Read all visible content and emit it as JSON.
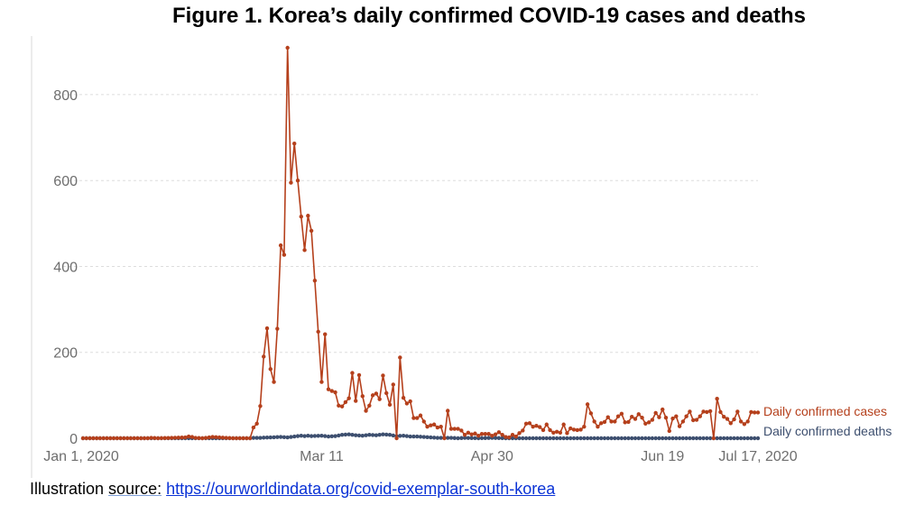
{
  "chart_data": {
    "type": "line",
    "title": "Figure 1. Korea’s daily confirmed COVID-19 cases and deaths",
    "xlabel": "",
    "ylabel": "",
    "ylim": [
      0,
      930
    ],
    "yticks": [
      0,
      200,
      400,
      600,
      800
    ],
    "xticks": [
      {
        "day": 0,
        "label": "Jan 1, 2020"
      },
      {
        "day": 70,
        "label": "Mar 11"
      },
      {
        "day": 120,
        "label": "Apr 30"
      },
      {
        "day": 170,
        "label": "Jun 19"
      },
      {
        "day": 198,
        "label": "Jul 17, 2020"
      }
    ],
    "x_unit": "days since Jan 1, 2020",
    "grid": true,
    "series": [
      {
        "name": "Daily confirmed cases",
        "color": "#b5401c",
        "points": [
          [
            0,
            0
          ],
          [
            19,
            0
          ],
          [
            20,
            1
          ],
          [
            22,
            0
          ],
          [
            26,
            1
          ],
          [
            30,
            2
          ],
          [
            31,
            4
          ],
          [
            32,
            3
          ],
          [
            33,
            1
          ],
          [
            35,
            0
          ],
          [
            38,
            3
          ],
          [
            40,
            2
          ],
          [
            44,
            0
          ],
          [
            49,
            0
          ],
          [
            50,
            25
          ],
          [
            51,
            34
          ],
          [
            52,
            75
          ],
          [
            53,
            190
          ],
          [
            54,
            256
          ],
          [
            55,
            161
          ],
          [
            56,
            131
          ],
          [
            57,
            255
          ],
          [
            58,
            449
          ],
          [
            59,
            427
          ],
          [
            60,
            909
          ],
          [
            61,
            595
          ],
          [
            62,
            686
          ],
          [
            63,
            600
          ],
          [
            64,
            516
          ],
          [
            65,
            438
          ],
          [
            66,
            518
          ],
          [
            67,
            483
          ],
          [
            68,
            367
          ],
          [
            69,
            248
          ],
          [
            70,
            131
          ],
          [
            71,
            242
          ],
          [
            72,
            114
          ],
          [
            73,
            110
          ],
          [
            74,
            107
          ],
          [
            75,
            76
          ],
          [
            76,
            74
          ],
          [
            77,
            84
          ],
          [
            78,
            93
          ],
          [
            79,
            152
          ],
          [
            80,
            87
          ],
          [
            81,
            147
          ],
          [
            82,
            98
          ],
          [
            83,
            64
          ],
          [
            84,
            76
          ],
          [
            85,
            100
          ],
          [
            86,
            104
          ],
          [
            87,
            91
          ],
          [
            88,
            146
          ],
          [
            89,
            105
          ],
          [
            90,
            78
          ],
          [
            91,
            125
          ],
          [
            92,
            0
          ],
          [
            93,
            188
          ],
          [
            94,
            94
          ],
          [
            95,
            81
          ],
          [
            96,
            86
          ],
          [
            97,
            47
          ],
          [
            98,
            47
          ],
          [
            99,
            53
          ],
          [
            100,
            39
          ],
          [
            101,
            27
          ],
          [
            102,
            30
          ],
          [
            103,
            32
          ],
          [
            104,
            25
          ],
          [
            105,
            27
          ],
          [
            106,
            0
          ],
          [
            107,
            64
          ],
          [
            108,
            22
          ],
          [
            109,
            22
          ],
          [
            110,
            22
          ],
          [
            111,
            18
          ],
          [
            112,
            8
          ],
          [
            113,
            13
          ],
          [
            114,
            9
          ],
          [
            115,
            11
          ],
          [
            116,
            6
          ],
          [
            117,
            10
          ],
          [
            118,
            10
          ],
          [
            119,
            10
          ],
          [
            120,
            6
          ],
          [
            121,
            9
          ],
          [
            122,
            14
          ],
          [
            123,
            8
          ],
          [
            124,
            3
          ],
          [
            125,
            2
          ],
          [
            126,
            8
          ],
          [
            127,
            4
          ],
          [
            128,
            12
          ],
          [
            129,
            18
          ],
          [
            130,
            34
          ],
          [
            131,
            35
          ],
          [
            132,
            27
          ],
          [
            133,
            29
          ],
          [
            134,
            26
          ],
          [
            135,
            19
          ],
          [
            136,
            32
          ],
          [
            137,
            19
          ],
          [
            138,
            13
          ],
          [
            139,
            15
          ],
          [
            140,
            13
          ],
          [
            141,
            32
          ],
          [
            142,
            12
          ],
          [
            143,
            23
          ],
          [
            144,
            20
          ],
          [
            145,
            19
          ],
          [
            146,
            20
          ],
          [
            147,
            27
          ],
          [
            148,
            79
          ],
          [
            149,
            58
          ],
          [
            150,
            39
          ],
          [
            151,
            27
          ],
          [
            152,
            35
          ],
          [
            153,
            38
          ],
          [
            154,
            49
          ],
          [
            155,
            39
          ],
          [
            156,
            39
          ],
          [
            157,
            51
          ],
          [
            158,
            57
          ],
          [
            159,
            37
          ],
          [
            160,
            38
          ],
          [
            161,
            50
          ],
          [
            162,
            45
          ],
          [
            163,
            56
          ],
          [
            164,
            48
          ],
          [
            165,
            34
          ],
          [
            166,
            37
          ],
          [
            167,
            43
          ],
          [
            168,
            59
          ],
          [
            169,
            49
          ],
          [
            170,
            67
          ],
          [
            171,
            48
          ],
          [
            172,
            17
          ],
          [
            173,
            46
          ],
          [
            174,
            51
          ],
          [
            175,
            28
          ],
          [
            176,
            39
          ],
          [
            177,
            51
          ],
          [
            178,
            62
          ],
          [
            179,
            42
          ],
          [
            180,
            43
          ],
          [
            181,
            51
          ],
          [
            182,
            62
          ],
          [
            183,
            61
          ],
          [
            184,
            63
          ],
          [
            185,
            0
          ],
          [
            186,
            92
          ],
          [
            187,
            61
          ],
          [
            188,
            50
          ],
          [
            189,
            45
          ],
          [
            190,
            35
          ],
          [
            191,
            44
          ],
          [
            192,
            62
          ],
          [
            193,
            39
          ],
          [
            194,
            33
          ],
          [
            195,
            39
          ],
          [
            196,
            61
          ],
          [
            197,
            60
          ],
          [
            198,
            60
          ]
        ]
      },
      {
        "name": "Daily confirmed deaths",
        "color": "#3d4f6f",
        "points": [
          [
            0,
            0
          ],
          [
            49,
            0
          ],
          [
            50,
            1
          ],
          [
            52,
            1
          ],
          [
            55,
            2
          ],
          [
            58,
            3
          ],
          [
            60,
            2
          ],
          [
            62,
            4
          ],
          [
            64,
            6
          ],
          [
            65,
            5
          ],
          [
            66,
            6
          ],
          [
            67,
            5
          ],
          [
            70,
            6
          ],
          [
            72,
            4
          ],
          [
            74,
            5
          ],
          [
            76,
            8
          ],
          [
            78,
            9
          ],
          [
            80,
            7
          ],
          [
            82,
            6
          ],
          [
            84,
            8
          ],
          [
            86,
            7
          ],
          [
            88,
            9
          ],
          [
            90,
            8
          ],
          [
            92,
            5
          ],
          [
            94,
            6
          ],
          [
            96,
            4
          ],
          [
            98,
            4
          ],
          [
            100,
            3
          ],
          [
            102,
            2
          ],
          [
            104,
            1
          ],
          [
            108,
            1
          ],
          [
            110,
            0
          ],
          [
            112,
            1
          ],
          [
            116,
            0
          ],
          [
            120,
            1
          ],
          [
            124,
            0
          ],
          [
            130,
            0
          ],
          [
            140,
            0
          ],
          [
            150,
            0
          ],
          [
            160,
            0
          ],
          [
            170,
            0
          ],
          [
            180,
            0
          ],
          [
            190,
            0
          ],
          [
            198,
            0
          ]
        ]
      }
    ]
  },
  "caption": {
    "prefix": "Illustration ",
    "source_word": "source:",
    "link": "https://ourworldindata.org/covid-exemplar-south-korea"
  }
}
